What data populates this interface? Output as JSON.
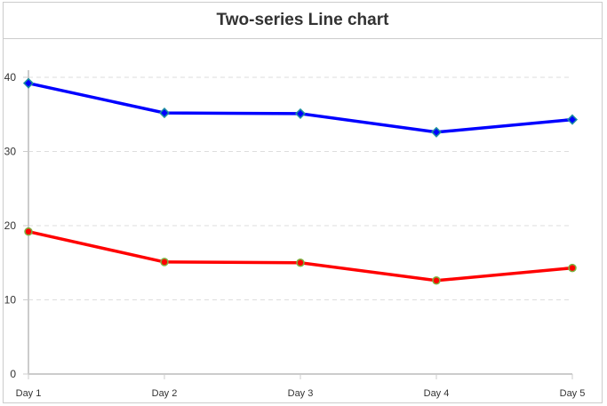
{
  "chart_data": {
    "type": "line",
    "title": "Two-series Line chart",
    "categories": [
      "Day 1",
      "Day 2",
      "Day 3",
      "Day 4",
      "Day 5"
    ],
    "series": [
      {
        "values": [
          39.2,
          35.2,
          35.1,
          32.6,
          34.3
        ],
        "color": "#0000ff",
        "marker": "diamond"
      },
      {
        "values": [
          19.2,
          15.1,
          15.0,
          12.6,
          14.3
        ],
        "color": "#ff0000",
        "marker": "circle"
      }
    ],
    "ylim": [
      0,
      40
    ],
    "yticks": [
      0,
      10,
      20,
      30,
      40
    ],
    "grid": true,
    "xlabel": "",
    "ylabel": ""
  }
}
